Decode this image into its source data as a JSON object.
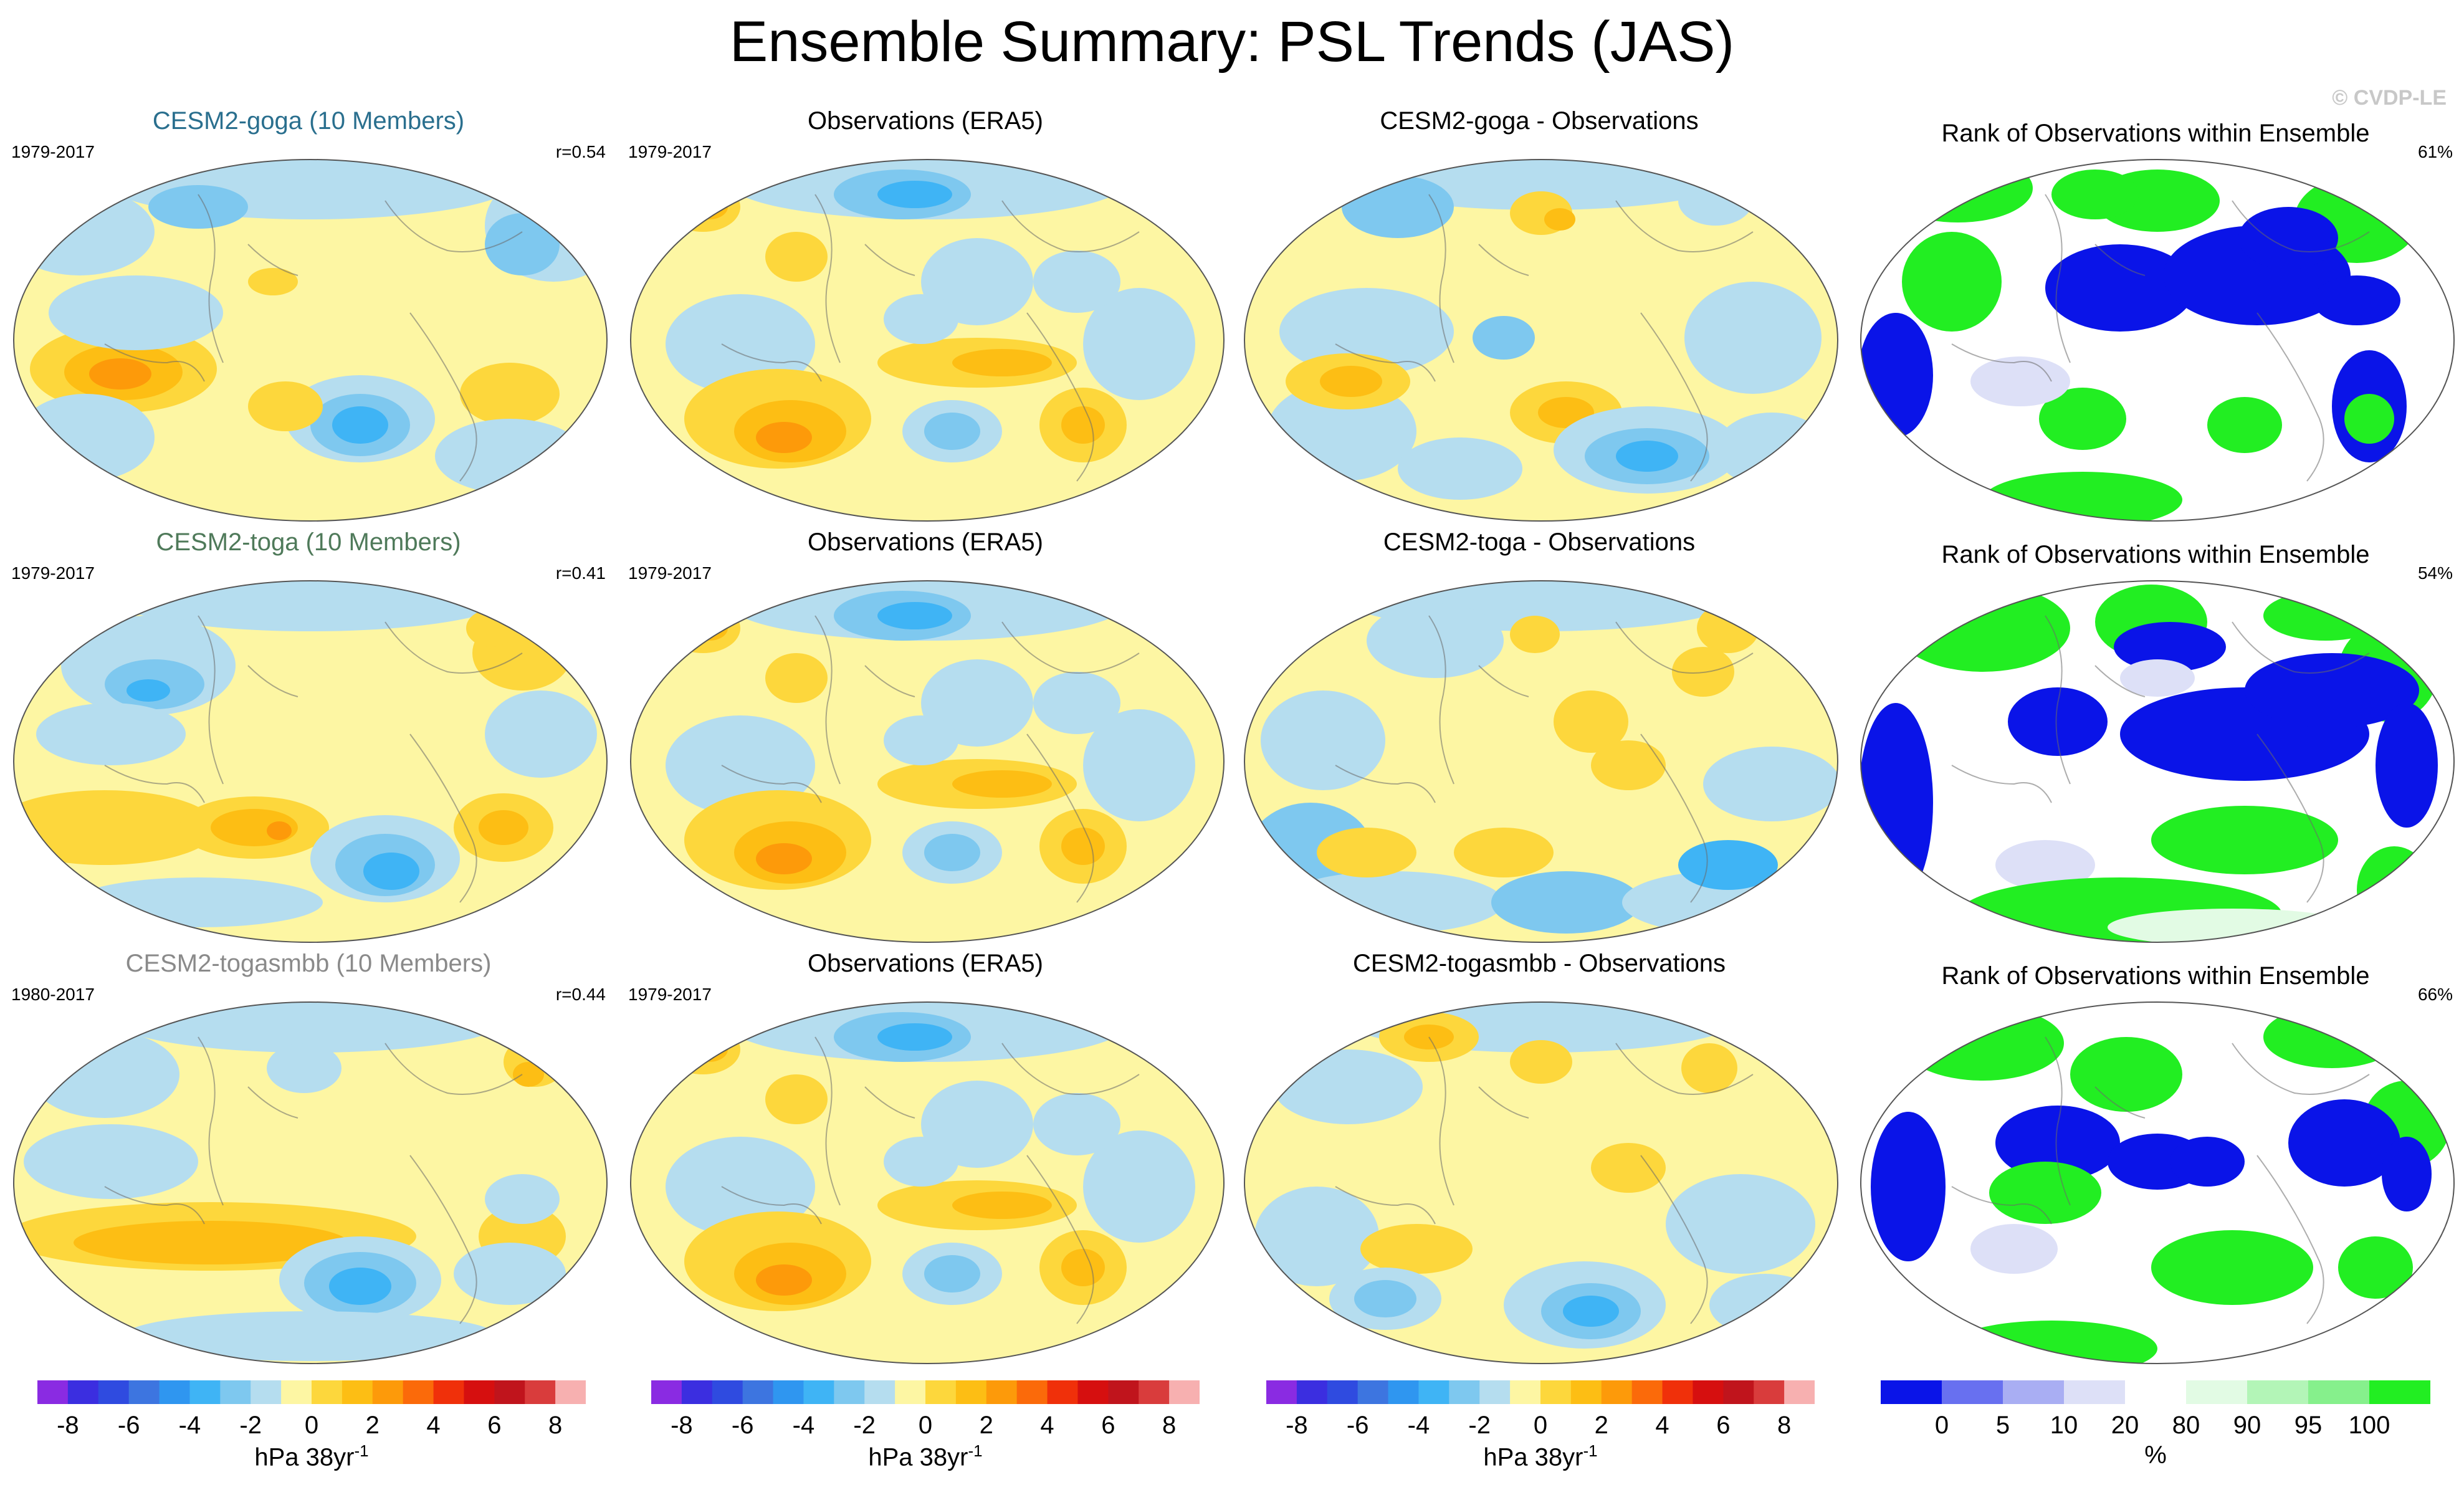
{
  "title": "Ensemble Summary: PSL Trends (JAS)",
  "watermark": "© CVDP-LE",
  "colors": {
    "sim_title_1": "#2a6f8e",
    "sim_title_2": "#4f7a5a",
    "sim_title_3": "#8a8a8a",
    "trend_palette": [
      "#8a2be2",
      "#3b2ee0",
      "#2f4be0",
      "#3d75e0",
      "#2f96f0",
      "#3fb4f5",
      "#7ec8ef",
      "#b5ddef",
      "#fdf6a3",
      "#fdd73c",
      "#fdbe14",
      "#fd9a0a",
      "#fb6a0a",
      "#f0300a",
      "#d60f0f",
      "#c0141c",
      "#d93c3c",
      "#f7b0b0"
    ],
    "rank_palette": [
      "#0a14e8",
      "#6870f0",
      "#a9aef3",
      "#dde0f7",
      "#ffffff",
      "#e2fbe4",
      "#b3f5b7",
      "#86f08c",
      "#22ee22"
    ]
  },
  "rows": [
    {
      "model_title": "CESM2-goga (10 Members)",
      "model_period": "1979-2017",
      "model_r": "r=0.54",
      "obs_title": "Observations (ERA5)",
      "obs_period": "1979-2017",
      "diff_title": "CESM2-goga - Observations",
      "rank_title": "Rank of Observations within Ensemble",
      "rank_pct": "61%"
    },
    {
      "model_title": "CESM2-toga (10 Members)",
      "model_period": "1979-2017",
      "model_r": "r=0.41",
      "obs_title": "Observations (ERA5)",
      "obs_period": "1979-2017",
      "diff_title": "CESM2-toga - Observations",
      "rank_title": "Rank of Observations within Ensemble",
      "rank_pct": "54%"
    },
    {
      "model_title": "CESM2-togasmbb (10 Members)",
      "model_period": "1980-2017",
      "model_r": "r=0.44",
      "obs_title": "Observations (ERA5)",
      "obs_period": "1979-2017",
      "diff_title": "CESM2-togasmbb - Observations",
      "rank_title": "Rank of Observations within Ensemble",
      "rank_pct": "66%"
    }
  ],
  "colorbars": {
    "trend": {
      "ticks": [
        "-8",
        "-6",
        "-4",
        "-2",
        "0",
        "2",
        "4",
        "6",
        "8"
      ],
      "label_main": "hPa 38yr",
      "label_sup": "-1"
    },
    "rank": {
      "ticks": [
        "0",
        "5",
        "10",
        "20",
        "80",
        "90",
        "95",
        "100"
      ],
      "label_main": "%"
    }
  },
  "chart_data": {
    "type": "heatmap",
    "title": "Ensemble Summary: PSL Trends (JAS)",
    "variable": "PSL",
    "season": "JAS",
    "units": "hPa 38yr-1",
    "trend_levels": [
      -8,
      -6,
      -4,
      -2,
      0,
      2,
      4,
      6,
      8
    ],
    "rank_levels_percent": [
      0,
      5,
      10,
      20,
      80,
      90,
      95,
      100
    ],
    "panels": [
      {
        "row": 1,
        "column": "model",
        "title": "CESM2-goga (10 Members)",
        "period": "1979-2017",
        "pattern_correlation": 0.54
      },
      {
        "row": 1,
        "column": "observations",
        "title": "Observations (ERA5)",
        "period": "1979-2017"
      },
      {
        "row": 1,
        "column": "difference",
        "title": "CESM2-goga - Observations"
      },
      {
        "row": 1,
        "column": "rank",
        "title": "Rank of Observations within Ensemble",
        "percent": 61
      },
      {
        "row": 2,
        "column": "model",
        "title": "CESM2-toga (10 Members)",
        "period": "1979-2017",
        "pattern_correlation": 0.41
      },
      {
        "row": 2,
        "column": "observations",
        "title": "Observations (ERA5)",
        "period": "1979-2017"
      },
      {
        "row": 2,
        "column": "difference",
        "title": "CESM2-toga - Observations"
      },
      {
        "row": 2,
        "column": "rank",
        "title": "Rank of Observations within Ensemble",
        "percent": 54
      },
      {
        "row": 3,
        "column": "model",
        "title": "CESM2-togasmbb (10 Members)",
        "period": "1980-2017",
        "pattern_correlation": 0.44
      },
      {
        "row": 3,
        "column": "observations",
        "title": "Observations (ERA5)",
        "period": "1979-2017"
      },
      {
        "row": 3,
        "column": "difference",
        "title": "CESM2-togasmbb - Observations"
      },
      {
        "row": 3,
        "column": "rank",
        "title": "Rank of Observations within Ensemble",
        "percent": 66
      }
    ]
  }
}
